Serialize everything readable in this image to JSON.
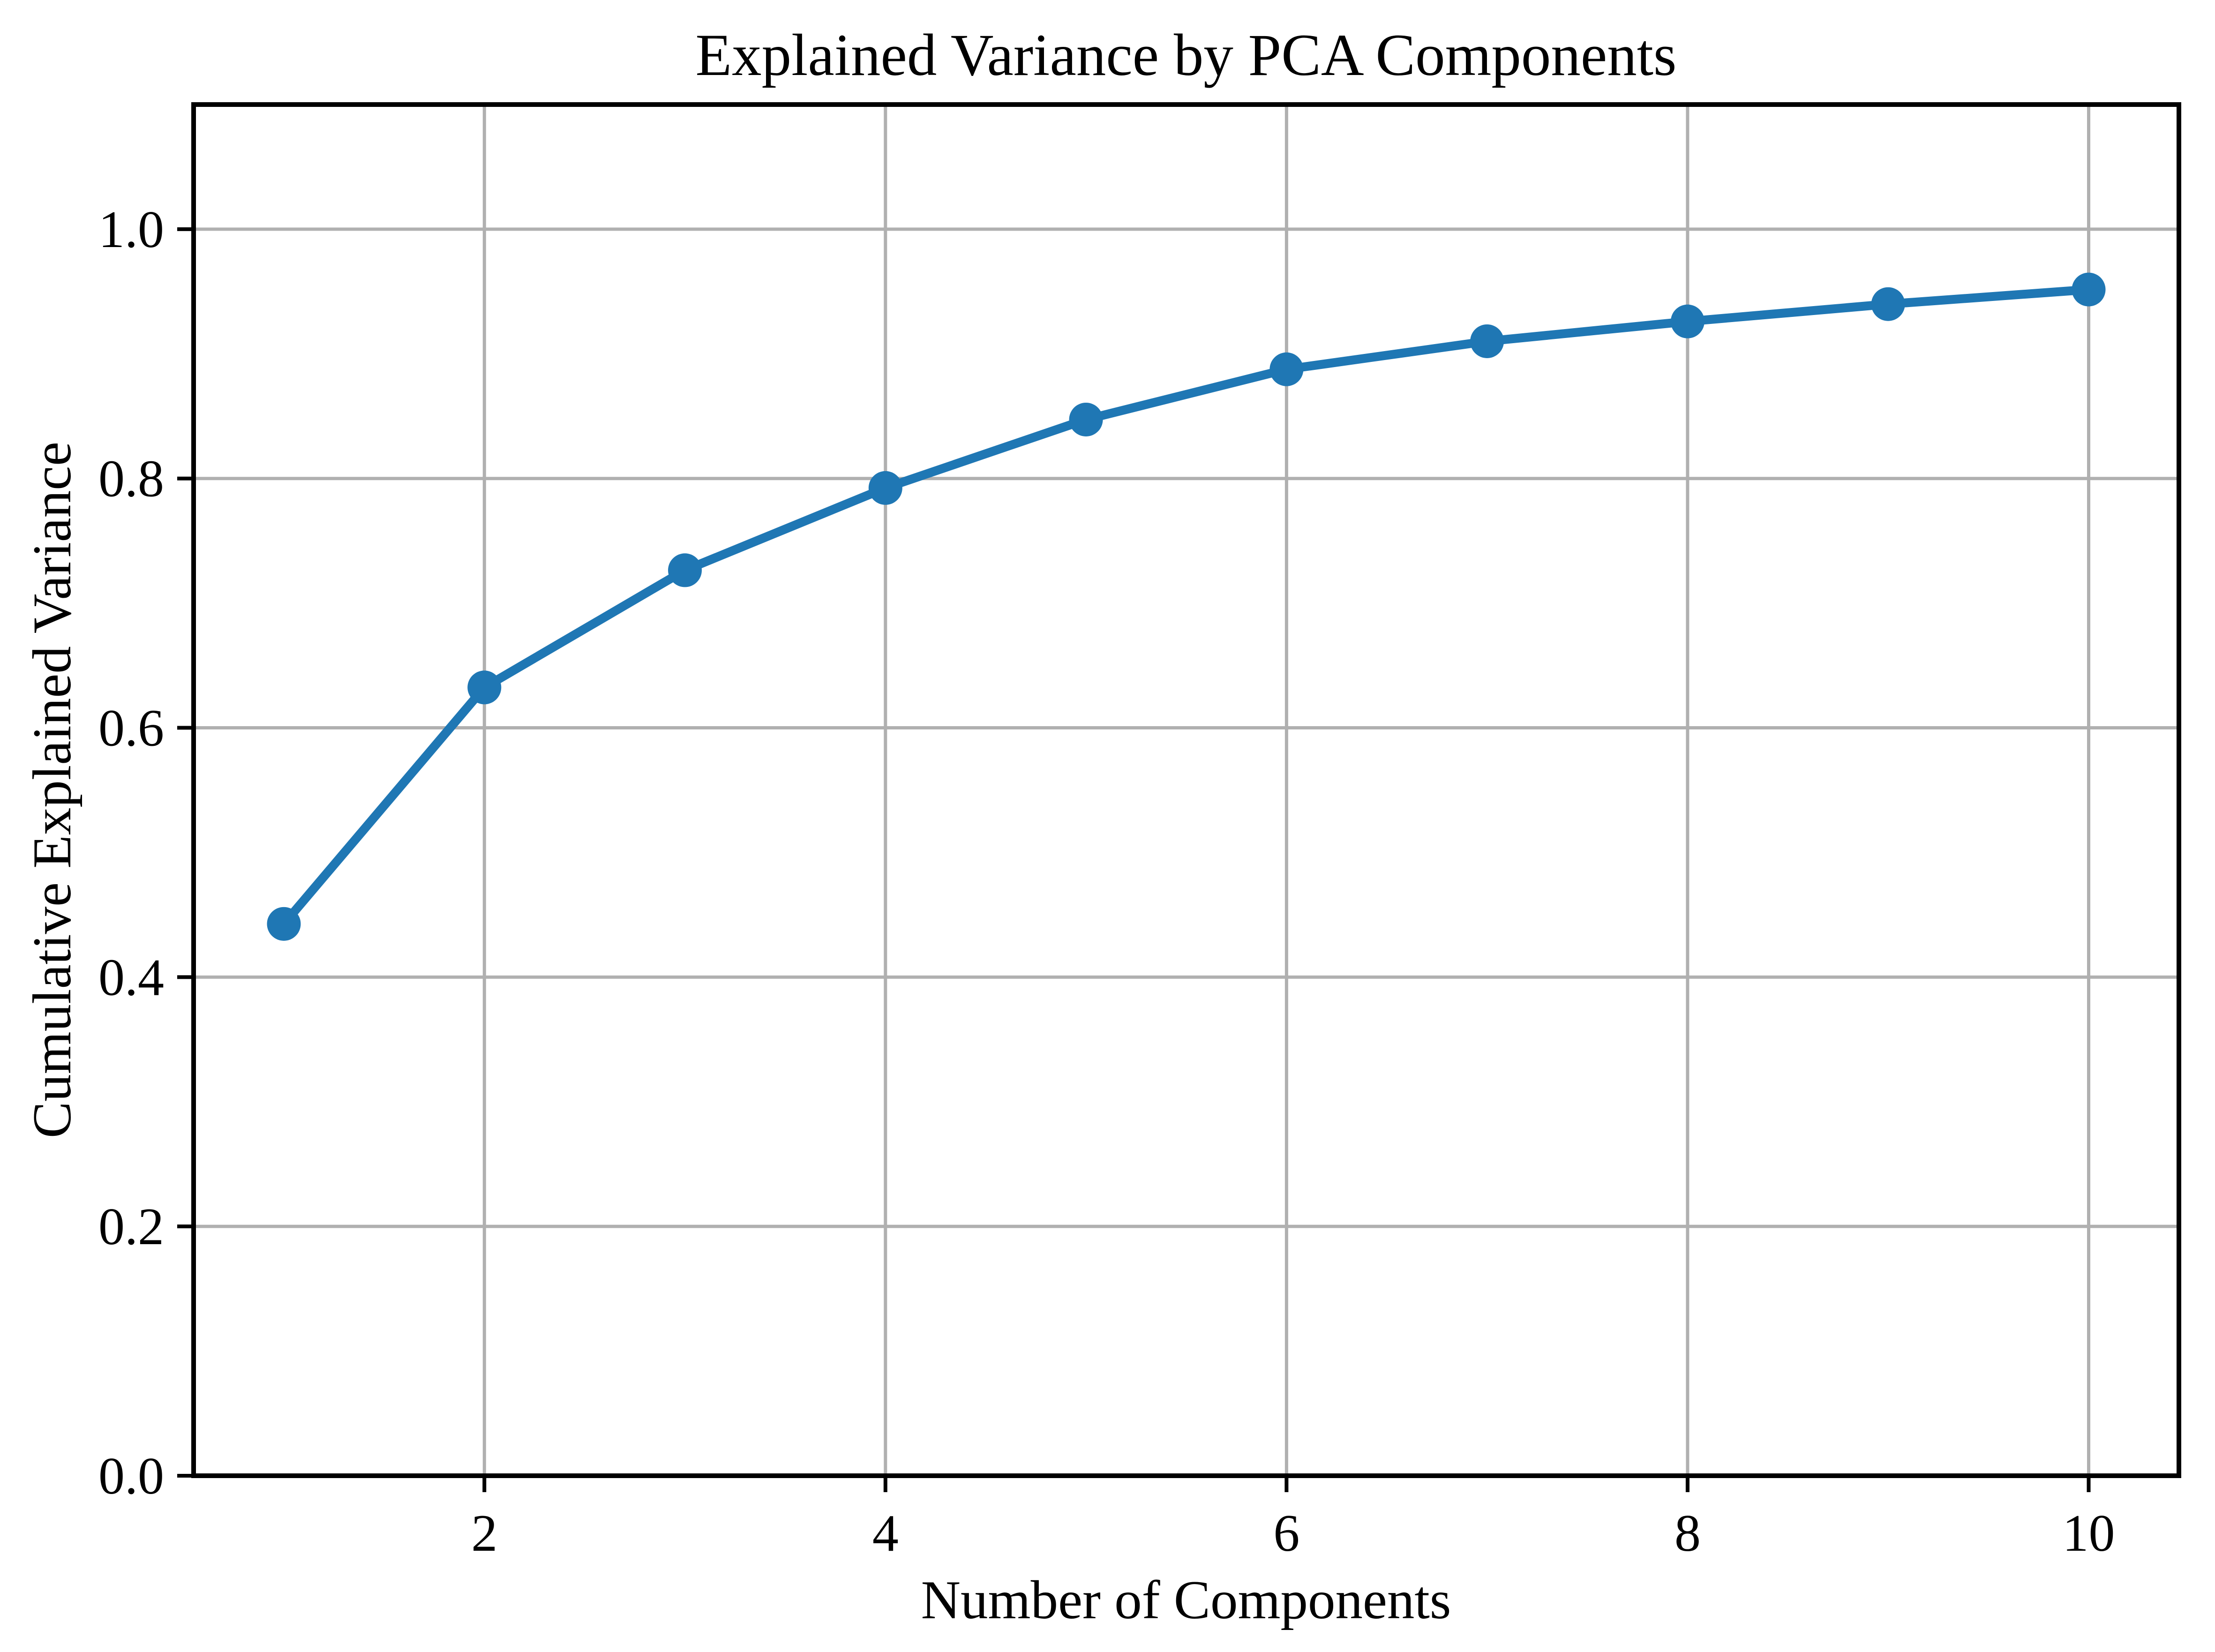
{
  "figure": {
    "background": "#ffffff"
  },
  "chart_data": {
    "type": "line",
    "title": "Explained Variance by PCA Components",
    "xlabel": "Number of Components",
    "ylabel": "Cumulative Explained Variance",
    "x": [
      1,
      2,
      3,
      4,
      5,
      6,
      7,
      8,
      9,
      10
    ],
    "series": [
      {
        "name": "cumulative explained variance",
        "values": [
          0.4427,
          0.6324,
          0.7264,
          0.7924,
          0.8473,
          0.8876,
          0.9101,
          0.926,
          0.9399,
          0.9516
        ]
      }
    ],
    "xlim": [
      0.55,
      10.45
    ],
    "ylim": [
      0.0,
      1.1
    ],
    "x_ticks": [
      2,
      4,
      6,
      8,
      10
    ],
    "x_tick_labels": [
      "2",
      "4",
      "6",
      "8",
      "10"
    ],
    "y_ticks": [
      0.0,
      0.2,
      0.4,
      0.6,
      0.8,
      1.0
    ],
    "y_tick_labels": [
      "0.0",
      "0.2",
      "0.4",
      "0.6",
      "0.8",
      "1.0"
    ],
    "grid": true,
    "legend_position": "none",
    "marker": "circle",
    "colors": {
      "line": "#1f77b4",
      "marker": "#1f77b4",
      "grid": "#b0b0b0",
      "axes": "#000000",
      "text": "#000000",
      "background": "#ffffff"
    }
  }
}
